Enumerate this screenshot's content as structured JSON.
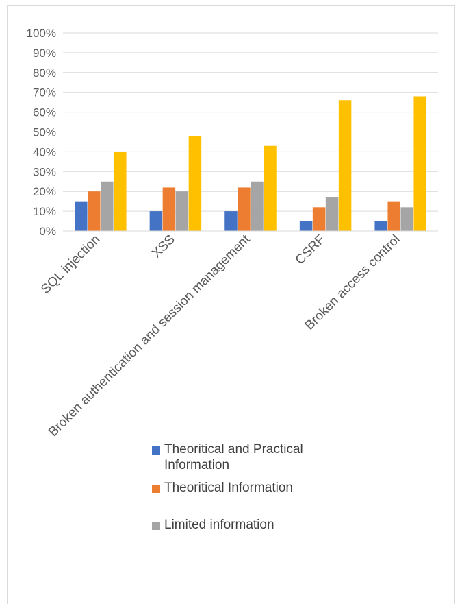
{
  "chart_data": {
    "type": "bar",
    "categories": [
      "SQL injection",
      "XSS",
      "Broken authentication and session management",
      "CSRF",
      "Broken access control"
    ],
    "series": [
      {
        "name": "Theoritical and Practical Information",
        "color": "#4472c4",
        "values": [
          15,
          10,
          10,
          5,
          5
        ]
      },
      {
        "name": "Theoritical Information",
        "color": "#ed7d31",
        "values": [
          20,
          22,
          22,
          12,
          15
        ]
      },
      {
        "name": "Limited information",
        "color": "#a5a5a5",
        "values": [
          25,
          20,
          25,
          17,
          12
        ]
      },
      {
        "name": "",
        "color": "#ffc000",
        "values": [
          40,
          48,
          43,
          66,
          68
        ]
      }
    ],
    "y_ticks": [
      "0%",
      "10%",
      "20%",
      "30%",
      "40%",
      "50%",
      "60%",
      "70%",
      "80%",
      "90%",
      "100%"
    ],
    "ylim": [
      0,
      100
    ],
    "grid": true,
    "legend_position": "bottom"
  }
}
